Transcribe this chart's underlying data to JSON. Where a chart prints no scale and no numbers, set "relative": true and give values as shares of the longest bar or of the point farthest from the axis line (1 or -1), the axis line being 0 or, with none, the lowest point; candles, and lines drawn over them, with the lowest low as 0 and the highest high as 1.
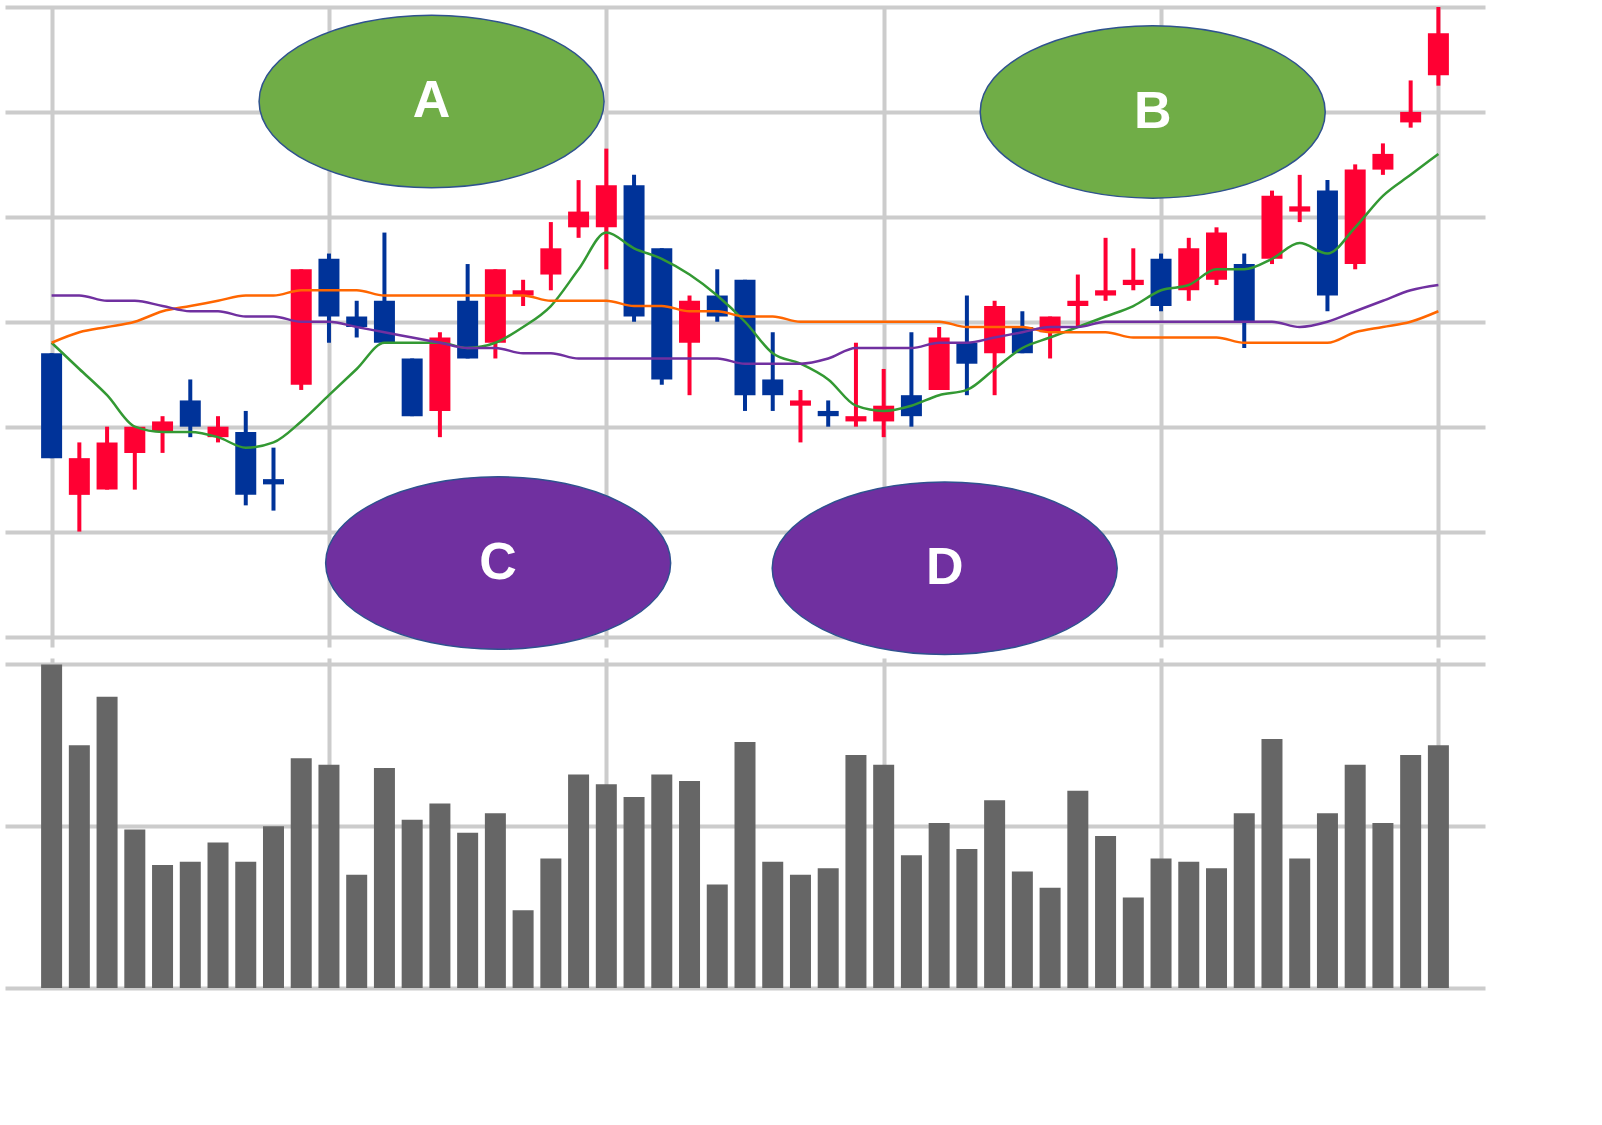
{
  "chart_data": [
    {
      "type": "candlestick",
      "relative": true,
      "grid": true,
      "categories": [
        null,
        null,
        null,
        null,
        null,
        null,
        null,
        null,
        null,
        null,
        null,
        null,
        null,
        null,
        null,
        null,
        null,
        null,
        null,
        null,
        null,
        null,
        null,
        null,
        null,
        null,
        null,
        null,
        null,
        null,
        null,
        null,
        null,
        null,
        null,
        null,
        null,
        null,
        null,
        null,
        null,
        null,
        null,
        null,
        null,
        null,
        null,
        null,
        null,
        null,
        null
      ],
      "ohlc": [
        [
          0.34,
          0.34,
          0.14,
          0.14
        ],
        [
          0.07,
          0.17,
          0,
          0.14
        ],
        [
          0.08,
          0.2,
          0.08,
          0.17
        ],
        [
          0.15,
          0.2,
          0.08,
          0.2
        ],
        [
          0.19,
          0.22,
          0.15,
          0.21
        ],
        [
          0.25,
          0.29,
          0.18,
          0.2
        ],
        [
          0.18,
          0.22,
          0.17,
          0.2
        ],
        [
          0.19,
          0.23,
          0.05,
          0.07
        ],
        [
          0.1,
          0.16,
          0.04,
          0.09
        ],
        [
          0.28,
          0.5,
          0.27,
          0.5
        ],
        [
          0.52,
          0.53,
          0.36,
          0.41
        ],
        [
          0.41,
          0.44,
          0.37,
          0.39
        ],
        [
          0.44,
          0.57,
          0.36,
          0.36
        ],
        [
          0.33,
          0.33,
          0.22,
          0.22
        ],
        [
          0.23,
          0.38,
          0.18,
          0.37
        ],
        [
          0.44,
          0.51,
          0.33,
          0.33
        ],
        [
          0.36,
          0.5,
          0.33,
          0.5
        ],
        [
          0.45,
          0.48,
          0.43,
          0.46
        ],
        [
          0.49,
          0.59,
          0.46,
          0.54
        ],
        [
          0.58,
          0.67,
          0.56,
          0.61
        ],
        [
          0.58,
          0.73,
          0.5,
          0.66
        ],
        [
          0.66,
          0.68,
          0.4,
          0.41
        ],
        [
          0.54,
          0.54,
          0.28,
          0.29
        ],
        [
          0.36,
          0.45,
          0.26,
          0.44
        ],
        [
          0.45,
          0.5,
          0.4,
          0.41
        ],
        [
          0.48,
          0.48,
          0.23,
          0.26
        ],
        [
          0.29,
          0.38,
          0.23,
          0.26
        ],
        [
          0.24,
          0.27,
          0.17,
          0.25
        ],
        [
          0.23,
          0.25,
          0.2,
          0.22
        ],
        [
          0.21,
          0.36,
          0.2,
          0.22
        ],
        [
          0.21,
          0.31,
          0.18,
          0.24
        ],
        [
          0.26,
          0.38,
          0.2,
          0.22
        ],
        [
          0.27,
          0.39,
          0.27,
          0.37
        ],
        [
          0.36,
          0.45,
          0.26,
          0.32
        ],
        [
          0.34,
          0.44,
          0.26,
          0.43
        ],
        [
          0.39,
          0.42,
          0.34,
          0.34
        ],
        [
          0.38,
          0.41,
          0.33,
          0.41
        ],
        [
          0.43,
          0.49,
          0.39,
          0.44
        ],
        [
          0.45,
          0.56,
          0.44,
          0.46
        ],
        [
          0.47,
          0.54,
          0.46,
          0.48
        ],
        [
          0.52,
          0.53,
          0.42,
          0.43
        ],
        [
          0.46,
          0.56,
          0.44,
          0.54
        ],
        [
          0.48,
          0.58,
          0.47,
          0.57
        ],
        [
          0.51,
          0.53,
          0.35,
          0.4
        ],
        [
          0.52,
          0.65,
          0.51,
          0.64
        ],
        [
          0.61,
          0.68,
          0.59,
          0.62
        ],
        [
          0.65,
          0.67,
          0.42,
          0.45
        ],
        [
          0.51,
          0.7,
          0.5,
          0.69
        ],
        [
          0.69,
          0.74,
          0.68,
          0.72
        ],
        [
          0.78,
          0.86,
          0.77,
          0.8
        ],
        [
          0.87,
          1.0,
          0.85,
          0.95
        ]
      ],
      "colors": [
        "#003399",
        "#ff0033",
        "#ff0033",
        "#ff0033",
        "#ff0033",
        "#003399",
        "#ff0033",
        "#003399",
        "#003399",
        "#ff0033",
        "#003399",
        "#003399",
        "#003399",
        "#003399",
        "#ff0033",
        "#003399",
        "#ff0033",
        "#ff0033",
        "#ff0033",
        "#ff0033",
        "#ff0033",
        "#003399",
        "#003399",
        "#ff0033",
        "#003399",
        "#003399",
        "#003399",
        "#ff0033",
        "#003399",
        "#ff0033",
        "#ff0033",
        "#003399",
        "#ff0033",
        "#003399",
        "#ff0033",
        "#003399",
        "#ff0033",
        "#ff0033",
        "#ff0033",
        "#ff0033",
        "#003399",
        "#ff0033",
        "#ff0033",
        "#003399",
        "#ff0033",
        "#ff0033",
        "#003399",
        "#ff0033",
        "#ff0033",
        "#ff0033",
        "#ff0033"
      ],
      "series": [
        {
          "type": "line",
          "color": "#339933",
          "values": [
            0.36,
            0.31,
            0.26,
            0.2,
            0.19,
            0.19,
            0.18,
            0.16,
            0.17,
            0.21,
            0.26,
            0.31,
            0.36,
            0.36,
            0.36,
            0.35,
            0.36,
            0.39,
            0.43,
            0.5,
            0.57,
            0.54,
            0.52,
            0.49,
            0.45,
            0.4,
            0.34,
            0.32,
            0.29,
            0.24,
            0.23,
            0.24,
            0.26,
            0.27,
            0.31,
            0.35,
            0.37,
            0.39,
            0.41,
            0.43,
            0.46,
            0.47,
            0.5,
            0.5,
            0.52,
            0.55,
            0.53,
            0.58,
            0.64,
            0.68,
            0.72
          ]
        },
        {
          "type": "line",
          "color": "#ff6600",
          "values": [
            0.36,
            0.38,
            0.39,
            0.4,
            0.42,
            0.43,
            0.44,
            0.45,
            0.45,
            0.46,
            0.46,
            0.46,
            0.45,
            0.45,
            0.45,
            0.45,
            0.45,
            0.45,
            0.44,
            0.44,
            0.44,
            0.43,
            0.43,
            0.42,
            0.42,
            0.41,
            0.41,
            0.4,
            0.4,
            0.4,
            0.4,
            0.4,
            0.4,
            0.39,
            0.39,
            0.39,
            0.38,
            0.38,
            0.38,
            0.37,
            0.37,
            0.37,
            0.37,
            0.36,
            0.36,
            0.36,
            0.36,
            0.38,
            0.39,
            0.4,
            0.42
          ]
        },
        {
          "type": "line",
          "color": "#7030a0",
          "values": [
            0.45,
            0.45,
            0.44,
            0.44,
            0.43,
            0.42,
            0.42,
            0.41,
            0.41,
            0.4,
            0.4,
            0.39,
            0.38,
            0.37,
            0.36,
            0.35,
            0.35,
            0.34,
            0.34,
            0.33,
            0.33,
            0.33,
            0.33,
            0.33,
            0.33,
            0.32,
            0.32,
            0.32,
            0.33,
            0.35,
            0.35,
            0.35,
            0.36,
            0.36,
            0.37,
            0.38,
            0.39,
            0.39,
            0.4,
            0.4,
            0.4,
            0.4,
            0.4,
            0.4,
            0.4,
            0.39,
            0.4,
            0.42,
            0.44,
            0.46,
            0.47
          ]
        }
      ],
      "annotations": [
        "A",
        "B",
        "C",
        "D"
      ]
    },
    {
      "type": "bar",
      "relative": true,
      "grid": true,
      "color": "#666666",
      "categories": [
        null,
        null,
        null,
        null,
        null,
        null,
        null,
        null,
        null,
        null,
        null,
        null,
        null,
        null,
        null,
        null,
        null,
        null,
        null,
        null,
        null,
        null,
        null,
        null,
        null,
        null,
        null,
        null,
        null,
        null,
        null,
        null,
        null,
        null,
        null,
        null,
        null,
        null,
        null,
        null,
        null,
        null,
        null,
        null,
        null,
        null,
        null,
        null,
        null,
        null,
        null
      ],
      "values": [
        1.0,
        0.75,
        0.9,
        0.49,
        0.38,
        0.39,
        0.45,
        0.39,
        0.5,
        0.71,
        0.69,
        0.35,
        0.68,
        0.52,
        0.57,
        0.48,
        0.54,
        0.24,
        0.4,
        0.66,
        0.63,
        0.59,
        0.66,
        0.64,
        0.32,
        0.76,
        0.39,
        0.35,
        0.37,
        0.72,
        0.69,
        0.41,
        0.51,
        0.43,
        0.58,
        0.36,
        0.31,
        0.61,
        0.47,
        0.28,
        0.4,
        0.39,
        0.37,
        0.54,
        0.77,
        0.4,
        0.54,
        0.69,
        0.51,
        0.72,
        0.75
      ]
    }
  ]
}
